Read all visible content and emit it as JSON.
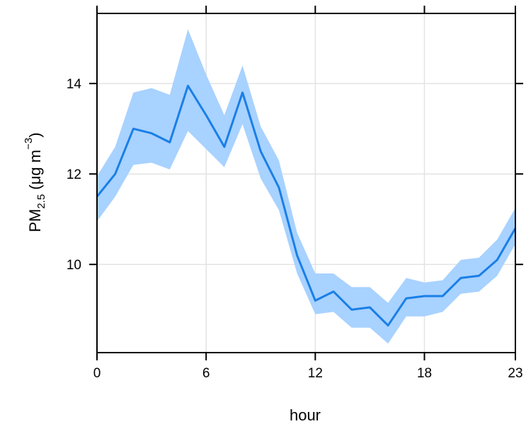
{
  "chart_data": {
    "type": "line",
    "title": "",
    "xlabel": "hour",
    "ylabel": {
      "prefix": "PM",
      "subscript": "2.5",
      "units_open": " (μg m",
      "superscript": "−3",
      "units_close": ")"
    },
    "xlim": [
      0,
      23
    ],
    "ylim": [
      8.05,
      15.55
    ],
    "x_ticks": [
      0,
      6,
      12,
      18,
      23
    ],
    "y_ticks": [
      10,
      12,
      14
    ],
    "grid": true,
    "colors": {
      "line": "#1a7fe6",
      "band": "#a8d2ff",
      "grid": "#e3e3e3",
      "frame": "#000000"
    },
    "x": [
      0,
      1,
      2,
      3,
      4,
      5,
      6,
      7,
      8,
      9,
      10,
      11,
      12,
      13,
      14,
      15,
      16,
      17,
      18,
      19,
      20,
      21,
      22,
      23
    ],
    "series": [
      {
        "values": [
          11.5,
          12.0,
          13.0,
          12.9,
          12.7,
          13.95,
          13.3,
          12.6,
          13.8,
          12.5,
          11.7,
          10.2,
          9.2,
          9.4,
          9.0,
          9.05,
          8.65,
          9.25,
          9.3,
          9.3,
          9.7,
          9.75,
          10.1,
          10.8
        ],
        "lower": [
          10.95,
          11.5,
          12.2,
          12.25,
          12.1,
          12.95,
          12.55,
          12.15,
          13.1,
          11.9,
          11.2,
          9.8,
          8.9,
          8.95,
          8.6,
          8.6,
          8.25,
          8.85,
          8.85,
          8.95,
          9.35,
          9.4,
          9.75,
          10.45
        ],
        "upper": [
          11.95,
          12.6,
          13.8,
          13.9,
          13.75,
          15.2,
          14.2,
          13.3,
          14.4,
          13.05,
          12.3,
          10.7,
          9.8,
          9.8,
          9.5,
          9.5,
          9.15,
          9.7,
          9.6,
          9.65,
          10.1,
          10.15,
          10.55,
          11.25
        ]
      }
    ]
  }
}
